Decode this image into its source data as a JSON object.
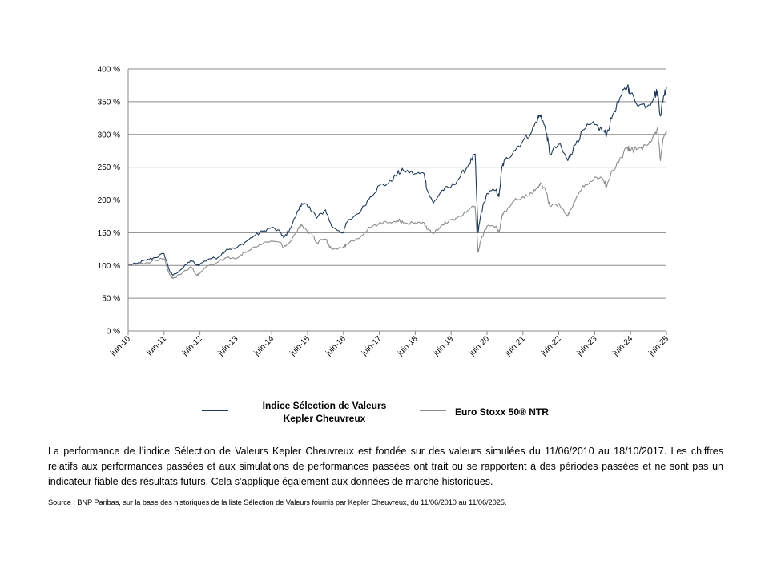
{
  "chart_data": {
    "type": "line",
    "y_tick_labels": [
      "0 %",
      "50 %",
      "100 %",
      "150 %",
      "200 %",
      "250 %",
      "300 %",
      "350 %",
      "400 %"
    ],
    "y_ticks": [
      0,
      50,
      100,
      150,
      200,
      250,
      300,
      350,
      400
    ],
    "ylim": [
      0,
      400
    ],
    "x_tick_labels": [
      "juin-10",
      "juin-11",
      "juin-12",
      "juin-13",
      "juin-14",
      "juin-15",
      "juin-16",
      "juin-17",
      "juin-18",
      "juin-19",
      "juin-20",
      "juin-21",
      "juin-22",
      "juin-23",
      "juin-24",
      "juin-25"
    ],
    "xlim": [
      "juin-10",
      "juin-25"
    ],
    "grid": "horizontal",
    "legend_position": "bottom",
    "series": [
      {
        "name": "Indice Sélection de Valeurs Kepler Cheuvreux",
        "color": "#1f3a5a",
        "points": [
          [
            "juin-10",
            100
          ],
          [
            "sept-10",
            103
          ],
          [
            "déc-10",
            108
          ],
          [
            "mars-11",
            112
          ],
          [
            "juin-11",
            118
          ],
          [
            "août-11",
            90
          ],
          [
            "sept-11",
            85
          ],
          [
            "déc-11",
            95
          ],
          [
            "mars-12",
            108
          ],
          [
            "mai-12",
            100
          ],
          [
            "juin-12",
            102
          ],
          [
            "sept-12",
            110
          ],
          [
            "déc-12",
            112
          ],
          [
            "mars-13",
            125
          ],
          [
            "juin-13",
            126
          ],
          [
            "sept-13",
            135
          ],
          [
            "déc-13",
            145
          ],
          [
            "mars-14",
            152
          ],
          [
            "juin-14",
            158
          ],
          [
            "sept-14",
            150
          ],
          [
            "oct-14",
            142
          ],
          [
            "déc-14",
            155
          ],
          [
            "mars-15",
            185
          ],
          [
            "avr-15",
            195
          ],
          [
            "juin-15",
            190
          ],
          [
            "août-15",
            182
          ],
          [
            "sept-15",
            172
          ],
          [
            "déc-15",
            185
          ],
          [
            "févr-16",
            160
          ],
          [
            "juin-16",
            150
          ],
          [
            "juil-16",
            165
          ],
          [
            "déc-16",
            185
          ],
          [
            "mars-17",
            205
          ],
          [
            "juin-17",
            222
          ],
          [
            "sept-17",
            225
          ],
          [
            "déc-17",
            240
          ],
          [
            "févr-18",
            245
          ],
          [
            "juin-18",
            240
          ],
          [
            "sept-18",
            240
          ],
          [
            "oct-18",
            215
          ],
          [
            "déc-18",
            195
          ],
          [
            "mars-19",
            215
          ],
          [
            "juin-19",
            220
          ],
          [
            "sept-19",
            235
          ],
          [
            "déc-19",
            255
          ],
          [
            "févr-20",
            270
          ],
          [
            "mars-20",
            150
          ],
          [
            "avr-20",
            180
          ],
          [
            "juin-20",
            210
          ],
          [
            "sept-20",
            215
          ],
          [
            "oct-20",
            205
          ],
          [
            "nov-20",
            250
          ],
          [
            "déc-20",
            260
          ],
          [
            "mars-21",
            275
          ],
          [
            "juin-21",
            290
          ],
          [
            "sept-21",
            305
          ],
          [
            "nov-21",
            325
          ],
          [
            "déc-21",
            330
          ],
          [
            "févr-22",
            300
          ],
          [
            "mars-22",
            270
          ],
          [
            "juin-22",
            285
          ],
          [
            "sept-22",
            260
          ],
          [
            "oct-22",
            270
          ],
          [
            "déc-22",
            290
          ],
          [
            "mars-23",
            310
          ],
          [
            "juin-23",
            315
          ],
          [
            "sept-23",
            305
          ],
          [
            "oct-23",
            300
          ],
          [
            "déc-23",
            330
          ],
          [
            "mars-24",
            360
          ],
          [
            "mai-24",
            375
          ],
          [
            "juin-24",
            362
          ],
          [
            "sept-24",
            345
          ],
          [
            "déc-24",
            345
          ],
          [
            "févr-25",
            360
          ],
          [
            "mars-25",
            365
          ],
          [
            "avr-25",
            328
          ],
          [
            "mai-25",
            358
          ],
          [
            "juin-25",
            372
          ]
        ]
      },
      {
        "name": "Euro Stoxx 50® NTR",
        "color": "#8c8c8c",
        "points": [
          [
            "juin-10",
            100
          ],
          [
            "sept-10",
            102
          ],
          [
            "déc-10",
            104
          ],
          [
            "mars-11",
            108
          ],
          [
            "juin-11",
            110
          ],
          [
            "août-11",
            85
          ],
          [
            "sept-11",
            80
          ],
          [
            "déc-11",
            88
          ],
          [
            "mars-12",
            98
          ],
          [
            "mai-12",
            85
          ],
          [
            "juin-12",
            88
          ],
          [
            "sept-12",
            100
          ],
          [
            "déc-12",
            105
          ],
          [
            "mars-13",
            112
          ],
          [
            "juin-13",
            110
          ],
          [
            "sept-13",
            120
          ],
          [
            "déc-13",
            128
          ],
          [
            "mars-14",
            133
          ],
          [
            "juin-14",
            138
          ],
          [
            "sept-14",
            135
          ],
          [
            "oct-14",
            128
          ],
          [
            "déc-14",
            135
          ],
          [
            "mars-15",
            158
          ],
          [
            "avr-15",
            162
          ],
          [
            "juin-15",
            152
          ],
          [
            "août-15",
            145
          ],
          [
            "sept-15",
            135
          ],
          [
            "déc-15",
            140
          ],
          [
            "févr-16",
            125
          ],
          [
            "juin-16",
            128
          ],
          [
            "juil-16",
            132
          ],
          [
            "déc-16",
            145
          ],
          [
            "mars-17",
            158
          ],
          [
            "juin-17",
            165
          ],
          [
            "sept-17",
            165
          ],
          [
            "déc-17",
            170
          ],
          [
            "févr-18",
            165
          ],
          [
            "juin-18",
            165
          ],
          [
            "sept-18",
            165
          ],
          [
            "oct-18",
            155
          ],
          [
            "déc-18",
            148
          ],
          [
            "mars-19",
            162
          ],
          [
            "juin-19",
            170
          ],
          [
            "sept-19",
            175
          ],
          [
            "déc-19",
            185
          ],
          [
            "févr-20",
            190
          ],
          [
            "mars-20",
            120
          ],
          [
            "avr-20",
            140
          ],
          [
            "juin-20",
            160
          ],
          [
            "sept-20",
            160
          ],
          [
            "oct-20",
            150
          ],
          [
            "nov-20",
            175
          ],
          [
            "déc-20",
            182
          ],
          [
            "mars-21",
            198
          ],
          [
            "juin-21",
            205
          ],
          [
            "sept-21",
            210
          ],
          [
            "nov-21",
            220
          ],
          [
            "déc-21",
            225
          ],
          [
            "févr-22",
            210
          ],
          [
            "mars-22",
            190
          ],
          [
            "juin-22",
            195
          ],
          [
            "sept-22",
            175
          ],
          [
            "oct-22",
            185
          ],
          [
            "déc-22",
            205
          ],
          [
            "mars-23",
            225
          ],
          [
            "juin-23",
            235
          ],
          [
            "sept-23",
            230
          ],
          [
            "oct-23",
            220
          ],
          [
            "déc-23",
            245
          ],
          [
            "mars-24",
            265
          ],
          [
            "mai-24",
            280
          ],
          [
            "juin-24",
            275
          ],
          [
            "sept-24",
            280
          ],
          [
            "déc-24",
            285
          ],
          [
            "févr-25",
            300
          ],
          [
            "mars-25",
            310
          ],
          [
            "avr-25",
            260
          ],
          [
            "mai-25",
            295
          ],
          [
            "juin-25",
            305
          ]
        ]
      }
    ]
  },
  "legend": {
    "items": [
      {
        "label_line1": "Indice Sélection de Valeurs",
        "label_line2": "Kepler Cheuvreux",
        "color": "#1f3a5a"
      },
      {
        "label_line1": "Euro Stoxx 50® NTR",
        "color": "#8c8c8c"
      }
    ]
  },
  "notes": {
    "text": "La performance de l’indice Sélection de Valeurs Kepler Cheuvreux est fondée sur des valeurs simulées du 11/06/2010 au 18/10/2017. Les chiffres relatifs aux performances passées et aux simulations de performances passées ont trait ou se rapportent à des périodes passées et ne sont pas un indicateur fiable des résultats futurs. Cela s'applique également aux données de marché historiques.",
    "source": "Source : BNP Paribas, sur la base des historiques de la liste Sélection de Valeurs fournis par Kepler Cheuvreux, du 11/06/2010 au 11/06/2025."
  }
}
